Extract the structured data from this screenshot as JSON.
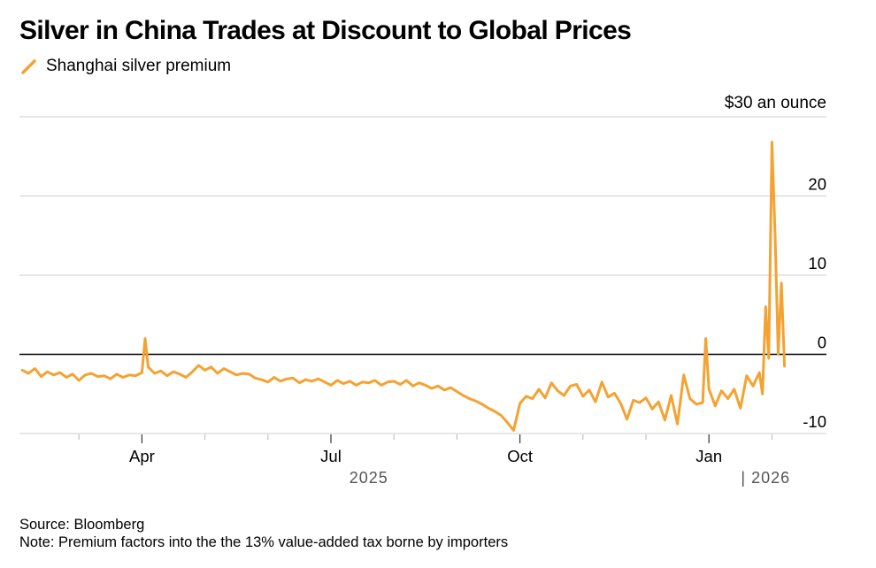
{
  "title": "Silver in China Trades at Discount to Global Prices",
  "legend": {
    "label": "Shanghai silver premium"
  },
  "colors": {
    "series": "#f4a232",
    "grid": "#cfcfcf",
    "zero": "#000000",
    "text": "#000000",
    "year": "#555555"
  },
  "footer": {
    "source": "Source: Bloomberg",
    "note": "Note: Premium factors into the the 13% value-added tax borne by importers"
  },
  "chart_data": {
    "type": "line",
    "title": "Silver in China Trades at Discount to Global Prices",
    "xlabel": "",
    "ylabel": "$30 an ounce",
    "ylim": [
      -10,
      30
    ],
    "xlim": [
      0,
      12.3
    ],
    "x_unit": "months since Feb 1, 2025",
    "grid": true,
    "y_ticks": [
      {
        "value": 30,
        "label": "$30 an ounce"
      },
      {
        "value": 20,
        "label": "20"
      },
      {
        "value": 10,
        "label": "10"
      },
      {
        "value": 0,
        "label": "0"
      },
      {
        "value": -10,
        "label": "-10"
      }
    ],
    "x_ticks": [
      {
        "value": 2,
        "label": "Apr"
      },
      {
        "value": 5,
        "label": "Jul"
      },
      {
        "value": 8,
        "label": "Oct"
      },
      {
        "value": 11,
        "label": "Jan"
      }
    ],
    "x_minor_ticks": [
      1,
      3,
      4,
      6,
      7,
      9,
      10,
      12
    ],
    "year_labels": [
      {
        "value": 5.6,
        "label": "2025"
      },
      {
        "value": 11.9,
        "label": "| 2026"
      }
    ],
    "series": [
      {
        "name": "Shanghai silver premium",
        "x": [
          0.1,
          0.2,
          0.3,
          0.4,
          0.5,
          0.6,
          0.7,
          0.8,
          0.9,
          1.0,
          1.1,
          1.2,
          1.3,
          1.4,
          1.5,
          1.6,
          1.7,
          1.8,
          1.9,
          2.0,
          2.05,
          2.1,
          2.2,
          2.3,
          2.4,
          2.5,
          2.6,
          2.7,
          2.8,
          2.9,
          3.0,
          3.1,
          3.2,
          3.3,
          3.4,
          3.5,
          3.6,
          3.7,
          3.8,
          3.9,
          4.0,
          4.1,
          4.2,
          4.3,
          4.4,
          4.5,
          4.6,
          4.7,
          4.8,
          4.9,
          5.0,
          5.1,
          5.2,
          5.3,
          5.4,
          5.5,
          5.6,
          5.7,
          5.8,
          5.9,
          6.0,
          6.1,
          6.2,
          6.3,
          6.4,
          6.5,
          6.6,
          6.7,
          6.8,
          6.9,
          7.0,
          7.1,
          7.2,
          7.3,
          7.4,
          7.5,
          7.6,
          7.7,
          7.8,
          7.9,
          8.0,
          8.1,
          8.2,
          8.3,
          8.4,
          8.5,
          8.6,
          8.7,
          8.8,
          8.9,
          9.0,
          9.1,
          9.2,
          9.3,
          9.4,
          9.5,
          9.6,
          9.7,
          9.8,
          9.9,
          10.0,
          10.1,
          10.2,
          10.3,
          10.4,
          10.5,
          10.6,
          10.7,
          10.8,
          10.9,
          10.95,
          11.0,
          11.1,
          11.2,
          11.3,
          11.4,
          11.5,
          11.6,
          11.7,
          11.8,
          11.85,
          11.9,
          11.95,
          12.0,
          12.05,
          12.1,
          12.15,
          12.2
        ],
        "values": [
          -2.0,
          -2.4,
          -1.8,
          -2.8,
          -2.2,
          -2.6,
          -2.3,
          -2.9,
          -2.5,
          -3.3,
          -2.6,
          -2.4,
          -2.8,
          -2.7,
          -3.1,
          -2.5,
          -2.9,
          -2.6,
          -2.7,
          -2.3,
          2.0,
          -1.6,
          -2.4,
          -2.1,
          -2.7,
          -2.2,
          -2.5,
          -2.9,
          -2.2,
          -1.4,
          -2.0,
          -1.6,
          -2.4,
          -1.8,
          -2.2,
          -2.6,
          -2.4,
          -2.5,
          -3.0,
          -3.2,
          -3.5,
          -2.9,
          -3.4,
          -3.1,
          -3.0,
          -3.6,
          -3.2,
          -3.4,
          -3.1,
          -3.5,
          -3.9,
          -3.3,
          -3.7,
          -3.4,
          -3.9,
          -3.5,
          -3.6,
          -3.3,
          -3.9,
          -3.5,
          -3.4,
          -3.8,
          -3.3,
          -4.0,
          -3.6,
          -3.9,
          -4.3,
          -4.0,
          -4.5,
          -4.2,
          -4.7,
          -5.2,
          -5.6,
          -5.9,
          -6.3,
          -6.8,
          -7.2,
          -7.7,
          -8.6,
          -9.6,
          -6.2,
          -5.3,
          -5.6,
          -4.4,
          -5.5,
          -3.6,
          -4.6,
          -5.2,
          -4.0,
          -3.8,
          -5.3,
          -4.5,
          -6.0,
          -3.5,
          -5.4,
          -4.9,
          -6.2,
          -8.2,
          -5.8,
          -6.1,
          -5.5,
          -6.9,
          -6.0,
          -8.3,
          -5.2,
          -8.8,
          -2.6,
          -5.6,
          -6.3,
          -6.1,
          2.0,
          -4.4,
          -6.5,
          -4.6,
          -5.6,
          -4.4,
          -6.8,
          -2.7,
          -4.0,
          -2.3,
          -5.0,
          6.0,
          -0.5,
          26.8,
          15.0,
          0.0,
          9.0,
          -1.5
        ]
      }
    ]
  }
}
